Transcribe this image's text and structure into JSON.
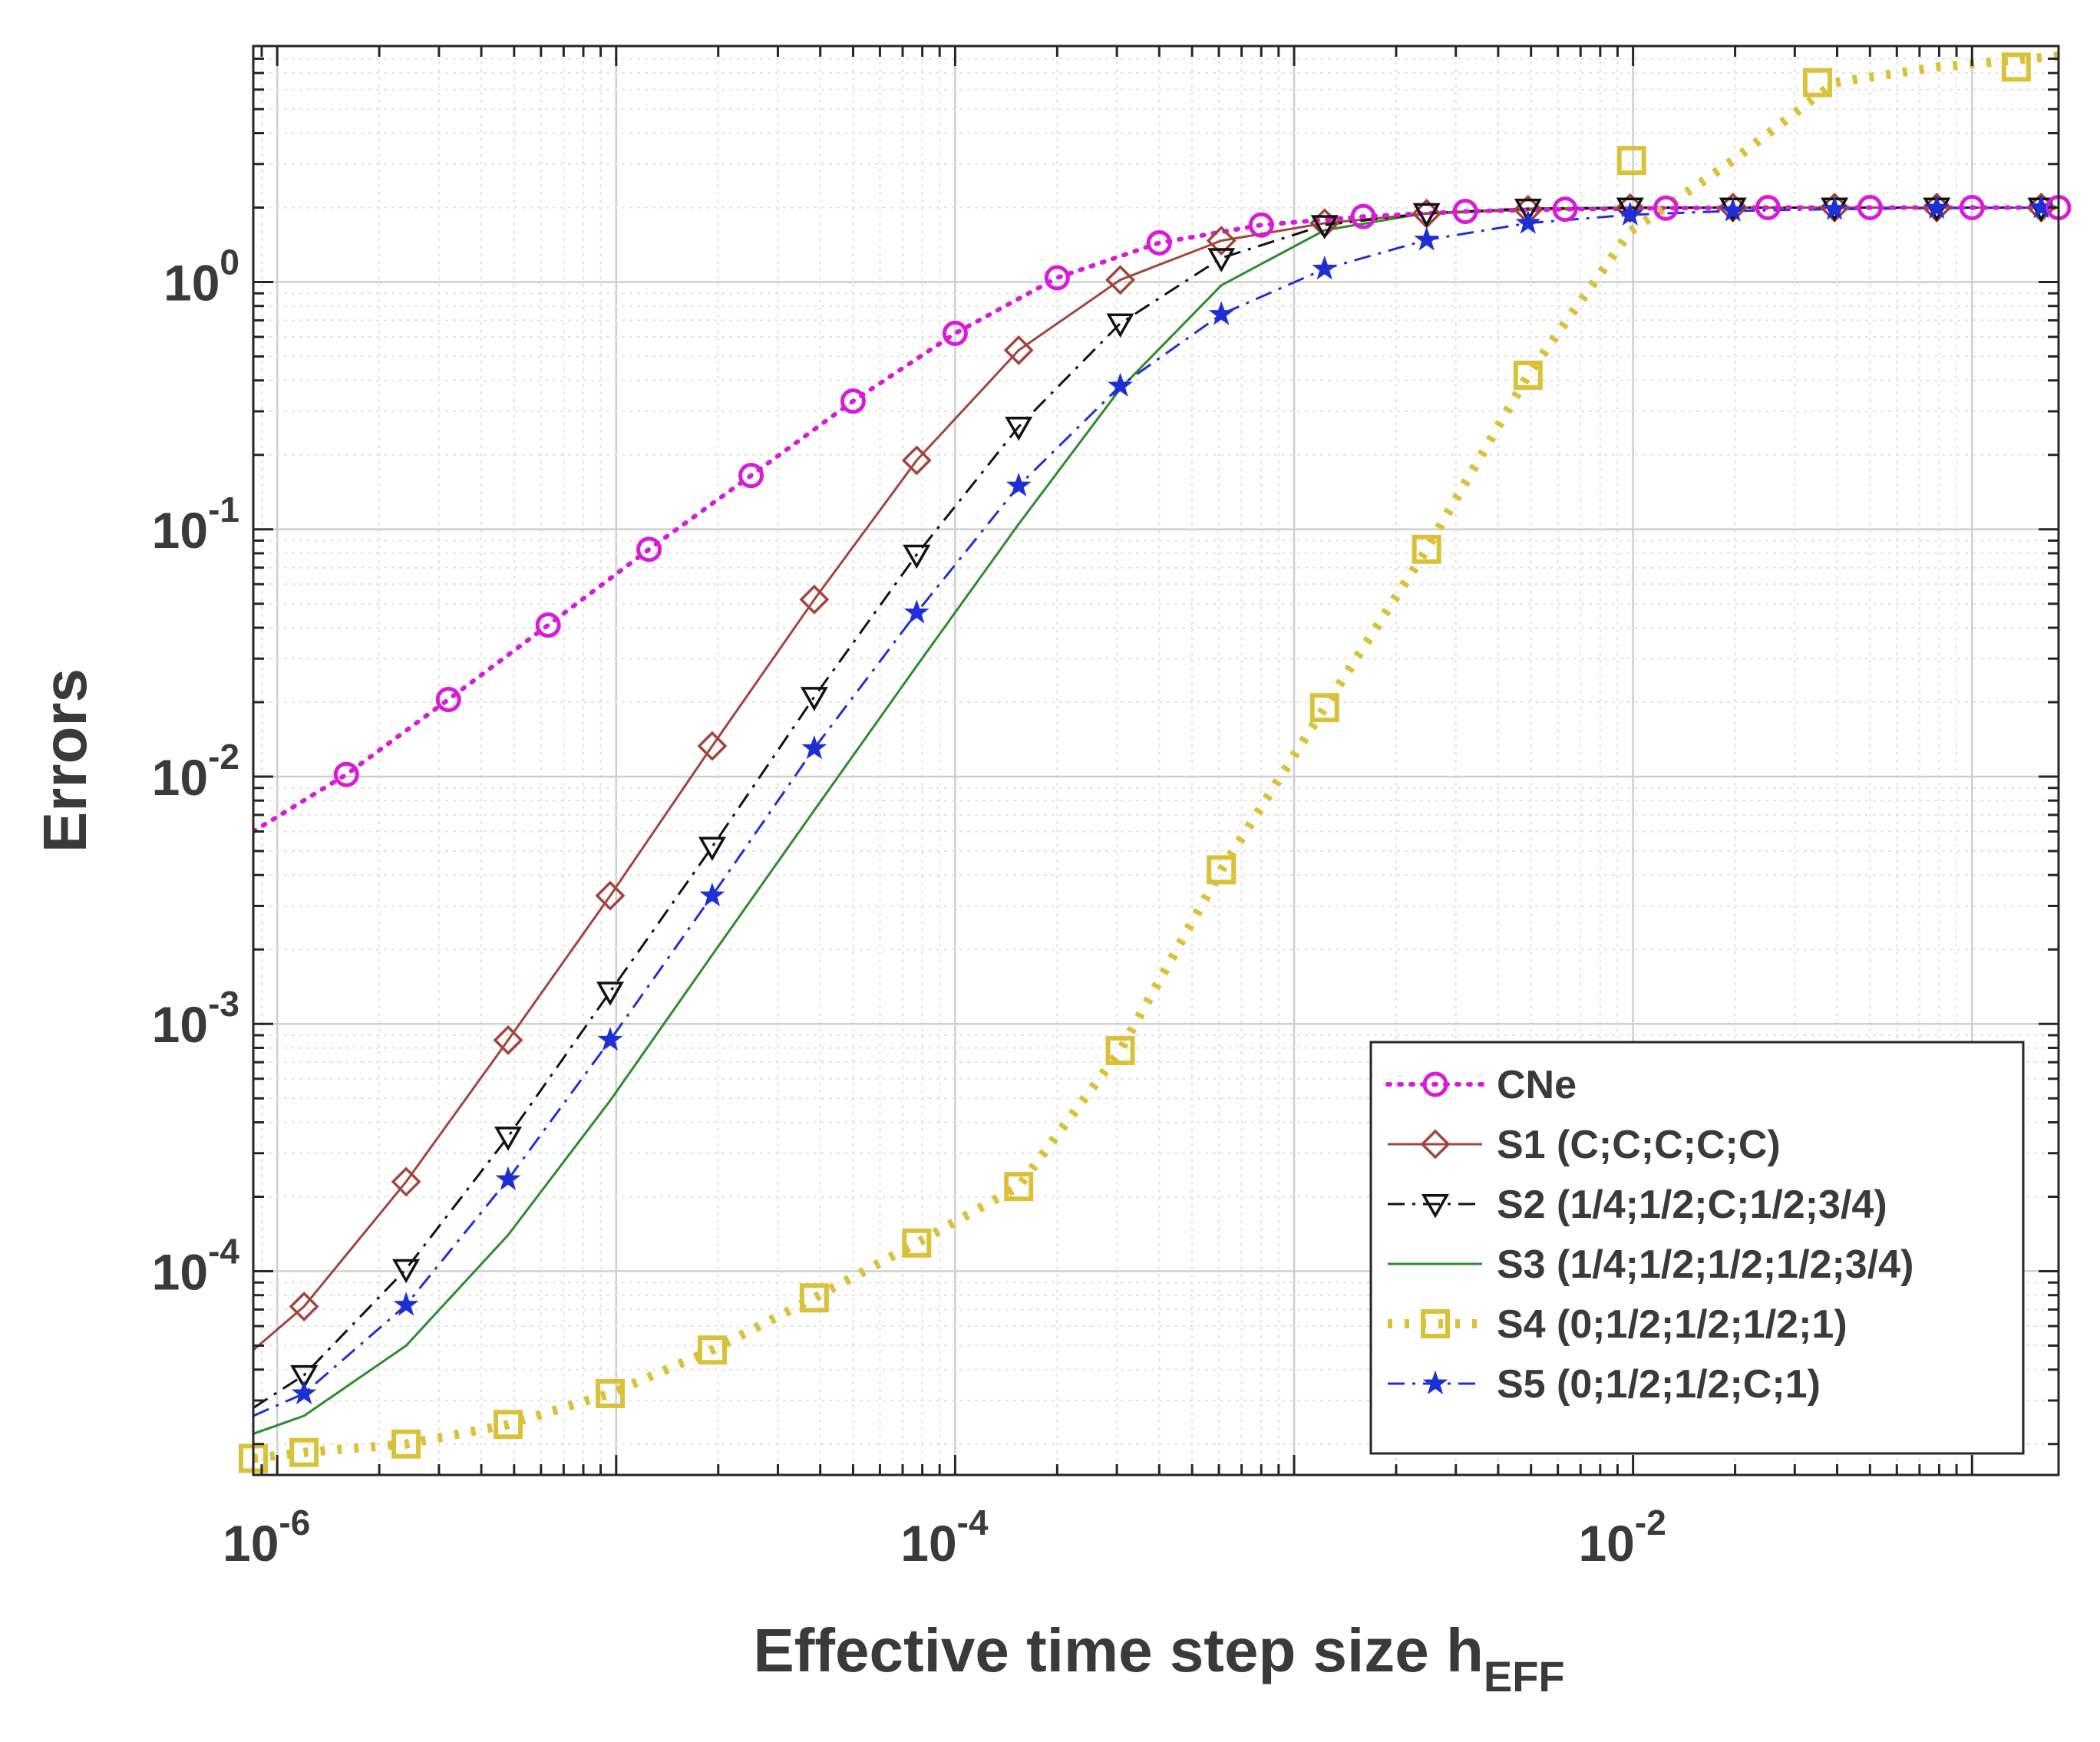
{
  "chart_data": {
    "type": "line",
    "title": "",
    "xlabel": "Effective time step size h",
    "xlabel_sub": "EFF",
    "ylabel": "Errors",
    "xscale": "log",
    "yscale": "log",
    "xlim": [
      8.5e-07,
      0.18
    ],
    "ylim": [
      1.5e-05,
      9.0
    ],
    "grid": true,
    "minor_grid": true,
    "legend_position": "bottom-right",
    "x_ticks": [
      {
        "base": "10",
        "exp": "-6",
        "value": 1e-06
      },
      {
        "base": "10",
        "exp": "-4",
        "value": 0.0001
      },
      {
        "base": "10",
        "exp": "-2",
        "value": 0.01
      }
    ],
    "y_ticks": [
      {
        "base": "10",
        "exp": "0",
        "value": 1
      },
      {
        "base": "10",
        "exp": "-1",
        "value": 0.1
      },
      {
        "base": "10",
        "exp": "-2",
        "value": 0.01
      },
      {
        "base": "10",
        "exp": "-3",
        "value": 0.001
      },
      {
        "base": "10",
        "exp": "-4",
        "value": 0.0001
      }
    ],
    "series": [
      {
        "name": "CNe",
        "color": "#d81bd8",
        "dash": "dotted",
        "marker": "circle",
        "x": [
          8.5e-07,
          1.6e-06,
          3.2e-06,
          6.3e-06,
          1.25e-05,
          2.5e-05,
          5e-05,
          0.0001,
          0.0002,
          0.0004,
          0.0008,
          0.0016,
          0.0032,
          0.0063,
          0.0125,
          0.025,
          0.05,
          0.1,
          0.18
        ],
        "y": [
          0.006,
          0.0102,
          0.0205,
          0.041,
          0.083,
          0.165,
          0.33,
          0.62,
          1.04,
          1.44,
          1.7,
          1.84,
          1.93,
          1.97,
          1.99,
          2.0,
          2.0,
          2.0,
          2.0
        ],
        "marker_x": [
          1.6e-06,
          3.2e-06,
          6.3e-06,
          1.25e-05,
          2.5e-05,
          5e-05,
          0.0001,
          0.0002,
          0.0004,
          0.0008,
          0.0016,
          0.0032,
          0.0063,
          0.0125,
          0.025,
          0.05,
          0.1,
          0.18
        ],
        "marker_y": [
          0.0102,
          0.0205,
          0.041,
          0.083,
          0.165,
          0.33,
          0.62,
          1.04,
          1.44,
          1.7,
          1.84,
          1.93,
          1.97,
          1.99,
          2.0,
          2.0,
          2.0,
          2.0
        ]
      },
      {
        "name": "S1 (C;C;C;C;C)",
        "color": "#a0463c",
        "dash": "solid",
        "marker": "diamond",
        "x": [
          8.5e-07,
          1.2e-06,
          2.4e-06,
          4.8e-06,
          9.6e-06,
          1.92e-05,
          3.84e-05,
          7.7e-05,
          0.000154,
          0.000307,
          0.00061,
          0.00123,
          0.00246,
          0.0049,
          0.0098,
          0.0197,
          0.0393,
          0.0787,
          0.18
        ],
        "y": [
          4.8e-05,
          7.2e-05,
          0.00023,
          0.00086,
          0.0033,
          0.0133,
          0.052,
          0.19,
          0.53,
          1.02,
          1.47,
          1.73,
          1.89,
          1.96,
          1.99,
          2.0,
          2.0,
          2.0,
          2.0
        ],
        "marker_x": [
          1.2e-06,
          2.4e-06,
          4.8e-06,
          9.6e-06,
          1.92e-05,
          3.84e-05,
          7.7e-05,
          0.000154,
          0.000307,
          0.00061,
          0.00123,
          0.00246,
          0.0049,
          0.0098,
          0.0197,
          0.0393,
          0.0787,
          0.16
        ],
        "marker_y": [
          7.2e-05,
          0.00023,
          0.00086,
          0.0033,
          0.0133,
          0.052,
          0.19,
          0.53,
          1.02,
          1.47,
          1.73,
          1.89,
          1.96,
          1.99,
          2.0,
          2.0,
          2.0,
          2.0
        ]
      },
      {
        "name": "S2 (1/4;1/2;C;1/2;3/4)",
        "color": "#111111",
        "dash": "dashdot",
        "marker": "triangle-down",
        "x": [
          8.5e-07,
          1.2e-06,
          2.4e-06,
          4.8e-06,
          9.6e-06,
          1.92e-05,
          3.84e-05,
          7.7e-05,
          0.000154,
          0.000307,
          0.00061,
          0.00123,
          0.00246,
          0.0049,
          0.0098,
          0.0197,
          0.0393,
          0.0787,
          0.18
        ],
        "y": [
          2.8e-05,
          3.8e-05,
          0.000102,
          0.00035,
          0.00135,
          0.0052,
          0.021,
          0.079,
          0.26,
          0.68,
          1.25,
          1.7,
          1.9,
          1.98,
          2.0,
          2.0,
          2.0,
          2.0,
          2.0
        ],
        "marker_x": [
          1.2e-06,
          2.4e-06,
          4.8e-06,
          9.6e-06,
          1.92e-05,
          3.84e-05,
          7.7e-05,
          0.000154,
          0.000307,
          0.00061,
          0.00123,
          0.00246,
          0.0049,
          0.0098,
          0.0197,
          0.0393,
          0.0787,
          0.16
        ],
        "marker_y": [
          3.8e-05,
          0.000102,
          0.00035,
          0.00135,
          0.0052,
          0.021,
          0.079,
          0.26,
          0.68,
          1.25,
          1.7,
          1.9,
          1.98,
          2.0,
          2.0,
          2.0,
          2.0,
          2.0
        ]
      },
      {
        "name": "S3 (1/4;1/2;1/2;1/2;3/4)",
        "color": "#2e8b2e",
        "dash": "solid",
        "marker": "none",
        "x": [
          8.5e-07,
          1.2e-06,
          2.4e-06,
          4.8e-06,
          9.6e-06,
          1.92e-05,
          3.84e-05,
          7.7e-05,
          0.000154,
          0.000307,
          0.00061,
          0.00123,
          0.00246,
          0.0049,
          0.0098,
          0.0197,
          0.0393,
          0.0787,
          0.18
        ],
        "y": [
          2.2e-05,
          2.6e-05,
          5e-05,
          0.00014,
          0.00049,
          0.0019,
          0.0073,
          0.028,
          0.105,
          0.37,
          0.97,
          1.62,
          1.9,
          1.98,
          2.0,
          2.0,
          2.0,
          2.0,
          2.0
        ],
        "marker_x": [],
        "marker_y": []
      },
      {
        "name": "S4 (0;1/2;1/2;1/2;1)",
        "color": "#d9c23a",
        "dash": "dotted-thick",
        "marker": "square",
        "x": [
          8.5e-07,
          1.2e-06,
          2.4e-06,
          4.8e-06,
          9.6e-06,
          1.92e-05,
          3.84e-05,
          7.7e-05,
          0.000154,
          0.000307,
          0.00061,
          0.00123,
          0.00246,
          0.0049,
          0.0098,
          0.0197,
          0.0393,
          0.0787,
          0.18
        ],
        "y": [
          1.75e-05,
          1.85e-05,
          2e-05,
          2.4e-05,
          3.2e-05,
          4.8e-05,
          7.8e-05,
          0.00013,
          0.00022,
          0.00078,
          0.0042,
          0.019,
          0.083,
          0.42,
          1.6,
          3.1,
          6.4,
          7.4,
          8.2
        ],
        "marker_x": [
          8.5e-07,
          1.2e-06,
          2.4e-06,
          4.8e-06,
          9.6e-06,
          1.92e-05,
          3.84e-05,
          7.7e-05,
          0.000154,
          0.000307,
          0.00061,
          0.00123,
          0.00246,
          0.0049,
          0.0099,
          0.035,
          0.135
        ],
        "marker_y": [
          1.75e-05,
          1.85e-05,
          2e-05,
          2.4e-05,
          3.2e-05,
          4.8e-05,
          7.8e-05,
          0.00013,
          0.00022,
          0.00078,
          0.0042,
          0.019,
          0.083,
          0.42,
          3.1,
          6.4,
          7.4
        ]
      },
      {
        "name": "S5 (0;1/2;1/2;C;1)",
        "color": "#1f2fd6",
        "dash": "dashdot",
        "marker": "star",
        "x": [
          8.5e-07,
          1.2e-06,
          2.4e-06,
          4.8e-06,
          9.6e-06,
          1.92e-05,
          3.84e-05,
          7.7e-05,
          0.000154,
          0.000307,
          0.00061,
          0.00123,
          0.00246,
          0.0049,
          0.0098,
          0.0197,
          0.0393,
          0.0787,
          0.18
        ],
        "y": [
          2.6e-05,
          3.2e-05,
          7.3e-05,
          0.000235,
          0.00086,
          0.0033,
          0.013,
          0.046,
          0.15,
          0.38,
          0.74,
          1.13,
          1.48,
          1.73,
          1.87,
          1.94,
          1.97,
          1.99,
          2.0
        ],
        "marker_x": [
          1.2e-06,
          2.4e-06,
          4.8e-06,
          9.6e-06,
          1.92e-05,
          3.84e-05,
          7.7e-05,
          0.000154,
          0.000307,
          0.00061,
          0.00123,
          0.00246,
          0.0049,
          0.0098,
          0.0197,
          0.0393,
          0.0787,
          0.16
        ],
        "marker_y": [
          3.2e-05,
          7.3e-05,
          0.000235,
          0.00086,
          0.0033,
          0.013,
          0.046,
          0.15,
          0.38,
          0.74,
          1.13,
          1.48,
          1.73,
          1.87,
          1.94,
          1.97,
          1.99,
          2.0
        ]
      }
    ]
  }
}
